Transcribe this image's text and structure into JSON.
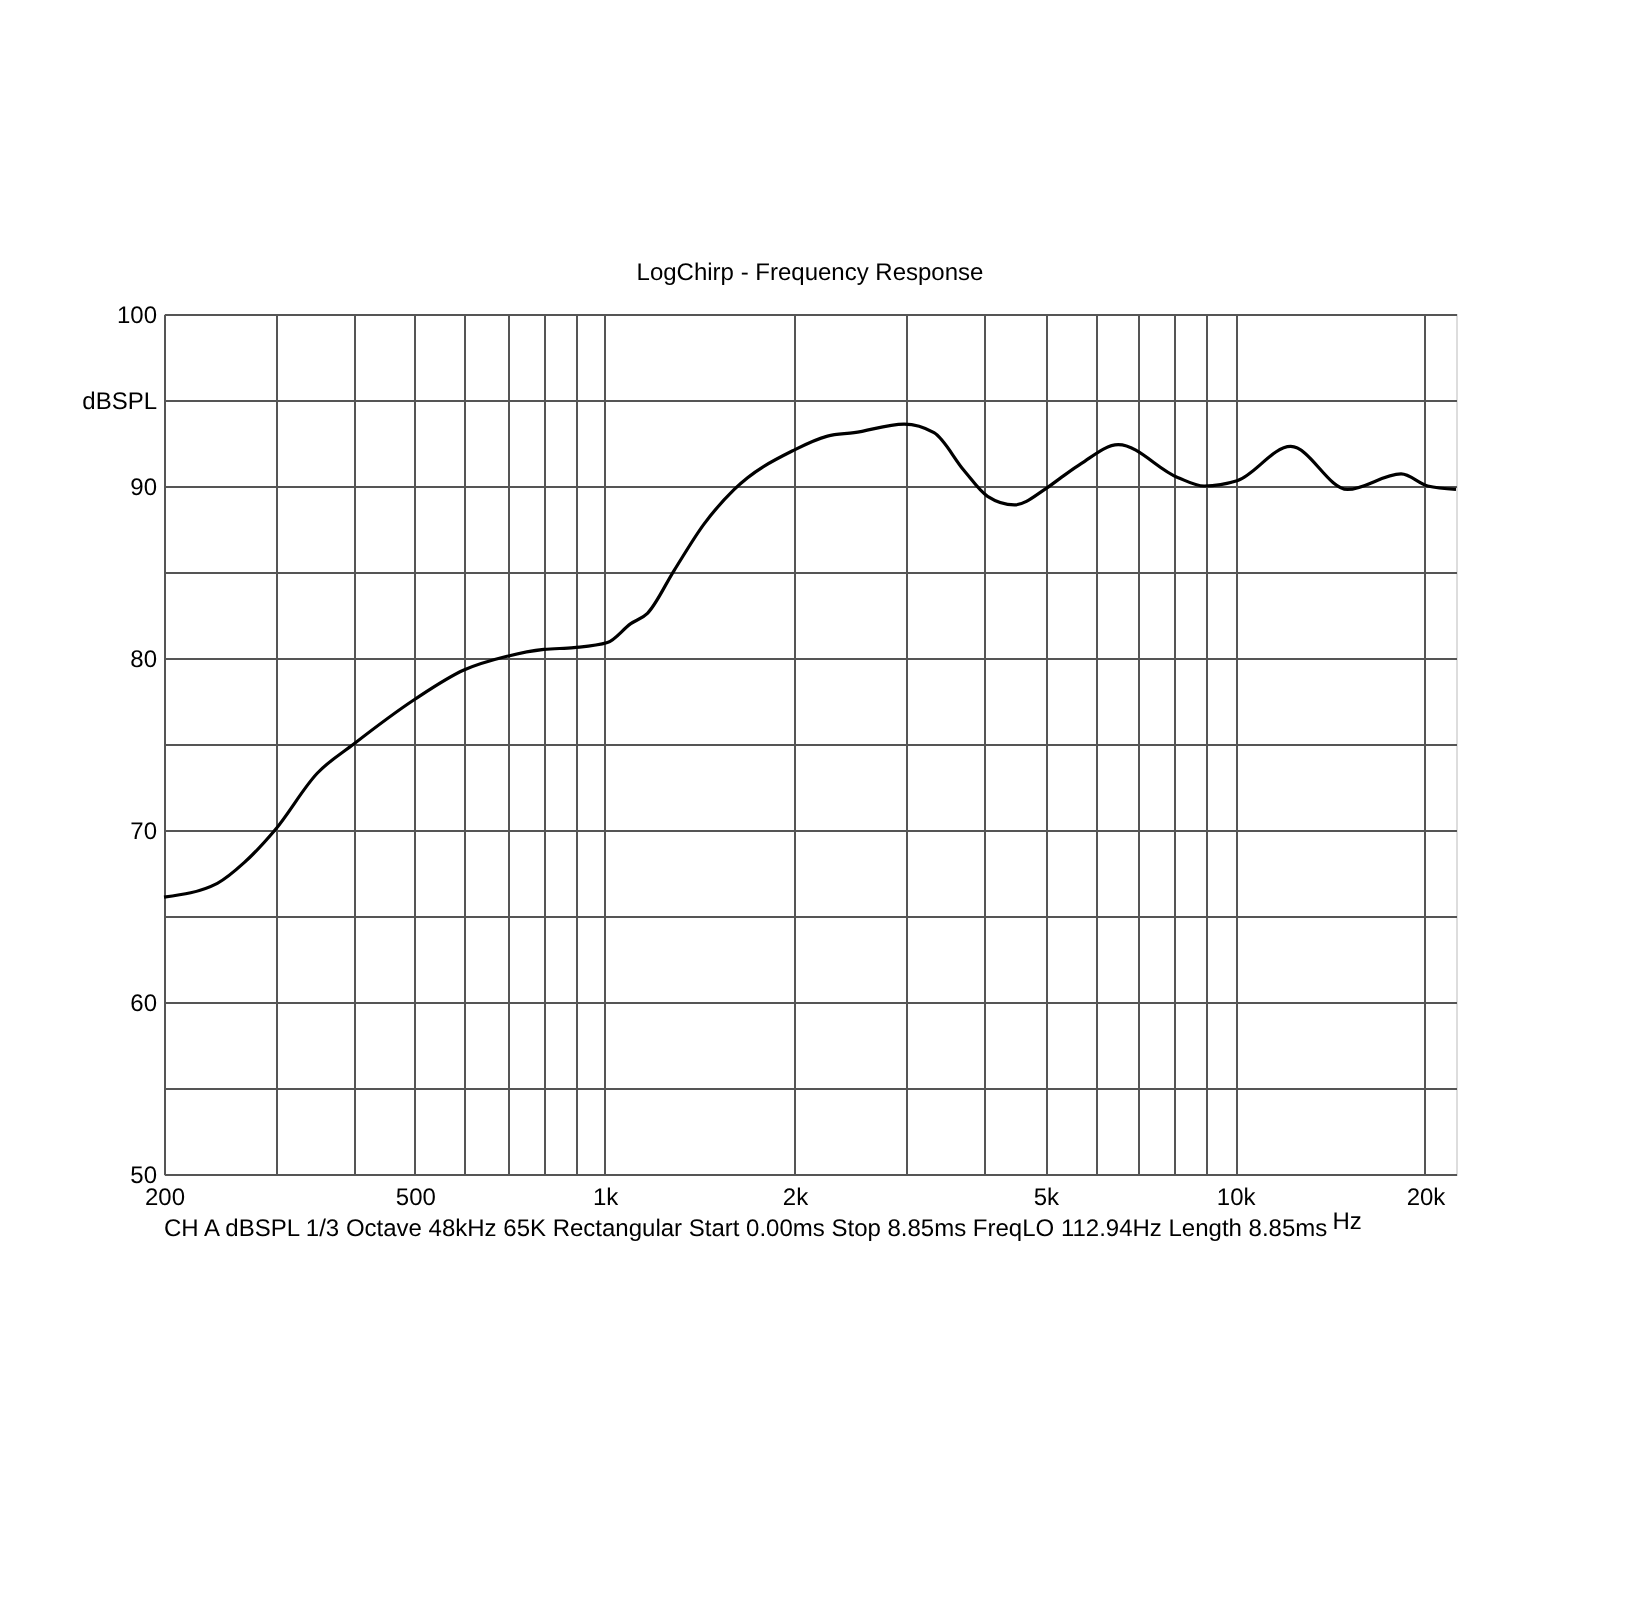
{
  "chart_data": {
    "type": "line",
    "title": "LogChirp - Frequency Response",
    "xlabel": "Hz",
    "log": "x",
    "grid": true,
    "legend": false,
    "marker": "none",
    "line_style": "solid",
    "xlim": [
      200,
      22400
    ],
    "ylim": [
      50,
      100
    ],
    "xticks": [
      200,
      {
        "value": 300,
        "label": null
      },
      {
        "value": 400,
        "label": null
      },
      500,
      {
        "value": 600,
        "label": null
      },
      {
        "value": 700,
        "label": null
      },
      {
        "value": 800,
        "label": null
      },
      {
        "value": 900,
        "label": null
      },
      {
        "value": 1000,
        "label": "1k"
      },
      {
        "value": 2000,
        "label": "2k"
      },
      {
        "value": 3000,
        "label": null
      },
      {
        "value": 4000,
        "label": null
      },
      {
        "value": 5000,
        "label": "5k"
      },
      {
        "value": 6000,
        "label": null
      },
      {
        "value": 7000,
        "label": null
      },
      {
        "value": 8000,
        "label": null
      },
      {
        "value": 9000,
        "label": null
      },
      {
        "value": 10000,
        "label": "10k"
      },
      {
        "value": 20000,
        "label": "20k"
      }
    ],
    "yticks": [
      50,
      {
        "value": 55,
        "label": null
      },
      60,
      {
        "value": 65,
        "label": null
      },
      70,
      {
        "value": 75,
        "label": null
      },
      80,
      {
        "value": 85,
        "label": null
      },
      90,
      {
        "value": 95,
        "label": "dBSPL"
      },
      100
    ],
    "annotations": [
      "CH A   dBSPL   1/3 Octave   48kHz   65K   Rectangular   Start 0.00ms   Stop 8.85ms   FreqLO 112.94Hz   Length 8.85ms"
    ],
    "series": [
      {
        "color": "#000000",
        "x": [
          200,
          243,
          268,
          300,
          350,
          400,
          500,
          598,
          700,
          801,
          894,
          1010,
          1100,
          1169,
          1289,
          1438,
          1605,
          2000,
          2256,
          2487,
          2986,
          3329,
          3715,
          4048,
          4464,
          4989,
          5300,
          5697,
          6524,
          8103,
          8928,
          10065,
          12250,
          15070,
          18330,
          20200,
          22400
        ],
        "values": [
          66.1,
          66.9,
          68.1,
          70.0,
          73.3,
          75.0,
          77.6,
          79.3,
          80.1,
          80.5,
          80.6,
          80.9,
          82.0,
          82.6,
          85.1,
          87.8,
          89.8,
          92.1,
          92.9,
          93.1,
          93.6,
          93.1,
          90.9,
          89.4,
          88.9,
          89.8,
          90.5,
          91.3,
          92.4,
          90.5,
          90.0,
          90.3,
          92.3,
          89.8,
          90.7,
          90.0,
          89.8
        ]
      }
    ]
  }
}
